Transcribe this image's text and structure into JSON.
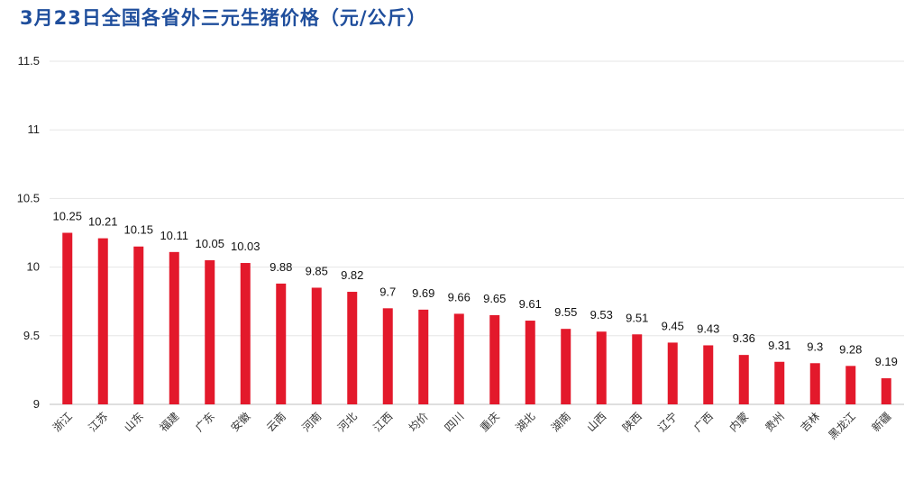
{
  "chart_data": {
    "type": "bar",
    "title": "3月23日全国各省外三元生猪价格（元/公斤）",
    "xlabel": "",
    "ylabel": "",
    "ylim": [
      9,
      11.5
    ],
    "yticks": [
      "9",
      "9.5",
      "10",
      "10.5",
      "11",
      "11.5"
    ],
    "grid": true,
    "legend": "none",
    "bar_color": "#e3192b",
    "title_color": "#1f4e9c",
    "categories": [
      "浙江",
      "江苏",
      "山东",
      "福建",
      "广东",
      "安徽",
      "云南",
      "河南",
      "河北",
      "江西",
      "均价",
      "四川",
      "重庆",
      "湖北",
      "湖南",
      "山西",
      "陕西",
      "辽宁",
      "广西",
      "内蒙",
      "贵州",
      "吉林",
      "黑龙江",
      "新疆"
    ],
    "values": [
      10.25,
      10.21,
      10.15,
      10.11,
      10.05,
      10.03,
      9.88,
      9.85,
      9.82,
      9.7,
      9.69,
      9.66,
      9.65,
      9.61,
      9.55,
      9.53,
      9.51,
      9.45,
      9.43,
      9.36,
      9.31,
      9.3,
      9.28,
      9.19
    ]
  }
}
